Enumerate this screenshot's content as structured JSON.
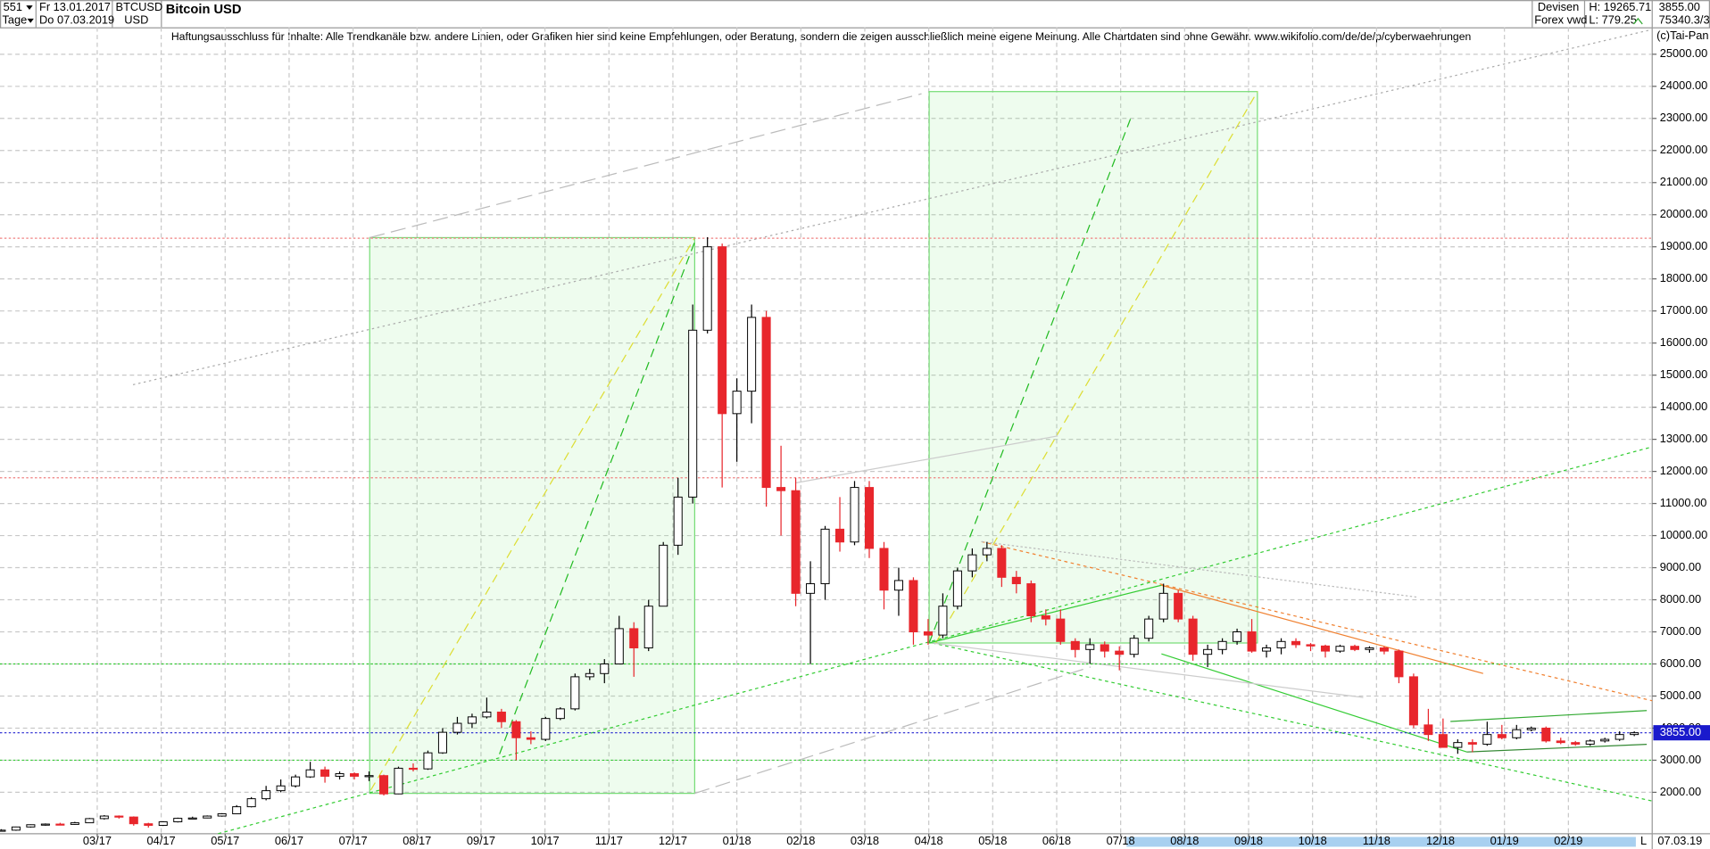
{
  "chart_data": {
    "type": "candlestick",
    "title": "Bitcoin USD",
    "header": {
      "period_count": "551",
      "period_unit": "Tage",
      "start_date": "Fr 13.01.2017",
      "end_date": "Do 07.03.2019",
      "symbol": "BTCUSD",
      "currency": "USD",
      "market": "Devisen",
      "source": "Forex vwd",
      "high_text": "H: 19265.71",
      "low_text": "L: 779.25",
      "volume_text": "75340.3/3",
      "copyright": "(c)Tai-Pan",
      "disclaimer": "Haftungsausschluss für Inhalte: Alle Trendkanäle bzw. andere Linien, oder Grafiken hier sind keine Empfehlungen, oder Beratung, sondern die zeigen ausschließlich meine eigene Meinung. Alle Chartdaten sind ohne Gewähr.  www.wikifolio.com/de/de/p/cyberwaehrungen",
      "end_axis_label": "07.03.19",
      "corner_label": "L"
    },
    "last_price": {
      "value": 3855,
      "label": "3855.00"
    },
    "grid": true,
    "up_color": "#ffffff",
    "down_color": "#e8262c",
    "wick_color": "#000000",
    "levels": [
      {
        "value": 19265.71,
        "color": "#f08080"
      },
      {
        "value": 11800,
        "color": "#f08080"
      },
      {
        "value": 6000,
        "color": "#33cc33"
      },
      {
        "value": 3000,
        "color": "#33cc33"
      }
    ],
    "xlim": [
      0.48,
      26.31
    ],
    "ylim": [
      710,
      25840
    ],
    "xticks": [
      {
        "value": 2,
        "label": "03/17"
      },
      {
        "value": 3,
        "label": "04/17"
      },
      {
        "value": 4,
        "label": "05/17"
      },
      {
        "value": 5,
        "label": "06/17"
      },
      {
        "value": 6,
        "label": "07/17"
      },
      {
        "value": 7,
        "label": "08/17"
      },
      {
        "value": 8,
        "label": "09/17"
      },
      {
        "value": 9,
        "label": "10/17"
      },
      {
        "value": 10,
        "label": "11/17"
      },
      {
        "value": 11,
        "label": "12/17"
      },
      {
        "value": 12,
        "label": "01/18"
      },
      {
        "value": 13,
        "label": "02/18"
      },
      {
        "value": 14,
        "label": "03/18"
      },
      {
        "value": 15,
        "label": "04/18"
      },
      {
        "value": 16,
        "label": "05/18"
      },
      {
        "value": 17,
        "label": "06/18"
      },
      {
        "value": 18,
        "label": "07/18"
      },
      {
        "value": 19,
        "label": "08/18"
      },
      {
        "value": 20,
        "label": "09/18"
      },
      {
        "value": 21,
        "label": "10/18"
      },
      {
        "value": 22,
        "label": "11/18"
      },
      {
        "value": 23,
        "label": "12/18"
      },
      {
        "value": 24,
        "label": "01/19"
      },
      {
        "value": 25,
        "label": "02/19"
      }
    ],
    "yticks": [
      {
        "value": 2000,
        "label": "2000.00"
      },
      {
        "value": 3000,
        "label": "3000.00"
      },
      {
        "value": 4000,
        "label": "4000.00"
      },
      {
        "value": 5000,
        "label": "5000.00"
      },
      {
        "value": 6000,
        "label": "6000.00"
      },
      {
        "value": 7000,
        "label": "7000.00"
      },
      {
        "value": 8000,
        "label": "8000.00"
      },
      {
        "value": 9000,
        "label": "9000.00"
      },
      {
        "value": 10000,
        "label": "10000.00"
      },
      {
        "value": 11000,
        "label": "11000.00"
      },
      {
        "value": 12000,
        "label": "12000.00"
      },
      {
        "value": 13000,
        "label": "13000.00"
      },
      {
        "value": 14000,
        "label": "14000.00"
      },
      {
        "value": 15000,
        "label": "15000.00"
      },
      {
        "value": 16000,
        "label": "16000.00"
      },
      {
        "value": 17000,
        "label": "17000.00"
      },
      {
        "value": 18000,
        "label": "18000.00"
      },
      {
        "value": 19000,
        "label": "19000.00"
      },
      {
        "value": 20000,
        "label": "20000.00"
      },
      {
        "value": 21000,
        "label": "21000.00"
      },
      {
        "value": 22000,
        "label": "22000.00"
      },
      {
        "value": 23000,
        "label": "23000.00"
      },
      {
        "value": 24000,
        "label": "24000.00"
      },
      {
        "value": 25000,
        "label": "25000.00"
      }
    ],
    "x": [
      0.5,
      0.73,
      0.96,
      1.19,
      1.42,
      1.65,
      1.88,
      2.11,
      2.34,
      2.57,
      2.8,
      3.03,
      3.26,
      3.49,
      3.72,
      3.95,
      4.18,
      4.41,
      4.64,
      4.87,
      5.1,
      5.33,
      5.56,
      5.79,
      6.02,
      6.25,
      6.48,
      6.71,
      6.94,
      7.17,
      7.4,
      7.63,
      7.86,
      8.09,
      8.32,
      8.55,
      8.78,
      9.01,
      9.24,
      9.47,
      9.7,
      9.93,
      10.16,
      10.39,
      10.62,
      10.85,
      11.08,
      11.31,
      11.54,
      11.77,
      12.0,
      12.23,
      12.46,
      12.69,
      12.92,
      13.15,
      13.38,
      13.61,
      13.84,
      14.07,
      14.3,
      14.53,
      14.76,
      14.99,
      15.22,
      15.45,
      15.68,
      15.91,
      16.14,
      16.37,
      16.6,
      16.83,
      17.06,
      17.29,
      17.52,
      17.75,
      17.98,
      18.21,
      18.44,
      18.67,
      18.9,
      19.13,
      19.36,
      19.59,
      19.82,
      20.05,
      20.28,
      20.51,
      20.74,
      20.97,
      21.2,
      21.43,
      21.66,
      21.89,
      22.12,
      22.35,
      22.58,
      22.81,
      23.04,
      23.27,
      23.5,
      23.73,
      23.96,
      24.19,
      24.42,
      24.65,
      24.88,
      25.11,
      25.34,
      25.57,
      25.8,
      26.03
    ],
    "open": [
      800,
      820,
      920,
      990,
      1010,
      1000,
      1050,
      1180,
      1260,
      1230,
      1020,
      970,
      1080,
      1190,
      1200,
      1260,
      1330,
      1550,
      1800,
      2050,
      2200,
      2480,
      2700,
      2500,
      2580,
      2500,
      2520,
      1950,
      2750,
      2730,
      3230,
      3870,
      4150,
      4350,
      4500,
      4200,
      3700,
      3650,
      4300,
      4600,
      5600,
      5700,
      6000,
      7100,
      6500,
      7800,
      9700,
      11200,
      16400,
      19000,
      13800,
      14500,
      16800,
      11500,
      11400,
      8200,
      8500,
      10200,
      9800,
      11500,
      9600,
      8300,
      8600,
      7000,
      6900,
      7800,
      8900,
      9400,
      9600,
      8700,
      8500,
      7500,
      7400,
      6700,
      6450,
      6600,
      6400,
      6300,
      6800,
      7400,
      8200,
      7400,
      6300,
      6450,
      6700,
      7000,
      6400,
      6500,
      6700,
      6600,
      6560,
      6400,
      6550,
      6450,
      6500,
      6400,
      5600,
      4100,
      3800,
      3400,
      3550,
      3500,
      3800,
      3700,
      3950,
      4000,
      3600,
      3550,
      3500,
      3600,
      3650,
      3800
    ],
    "high": [
      850,
      930,
      1000,
      1030,
      1050,
      1080,
      1200,
      1290,
      1280,
      1250,
      1050,
      1100,
      1210,
      1240,
      1280,
      1350,
      1600,
      1850,
      2200,
      2400,
      2550,
      2950,
      2800,
      2650,
      2620,
      2650,
      2550,
      2800,
      2900,
      3300,
      4000,
      4350,
      4450,
      4950,
      4600,
      4250,
      3900,
      4350,
      4650,
      5700,
      5850,
      6150,
      7500,
      7300,
      8000,
      9800,
      11800,
      17200,
      19300,
      19100,
      14900,
      17200,
      17000,
      12800,
      11800,
      9200,
      10300,
      11200,
      11700,
      11700,
      9800,
      9000,
      8700,
      7400,
      8200,
      9000,
      9600,
      9800,
      9700,
      8900,
      8600,
      7700,
      7700,
      6800,
      6800,
      6700,
      6550,
      6900,
      7500,
      8500,
      8300,
      7500,
      6600,
      6800,
      7100,
      7400,
      6600,
      6800,
      6800,
      6650,
      6600,
      6600,
      6600,
      6550,
      6550,
      6450,
      5700,
      4600,
      4300,
      3650,
      3650,
      4200,
      4100,
      4100,
      4050,
      4050,
      3700,
      3600,
      3650,
      3700,
      3900,
      3900
    ],
    "low": [
      780,
      800,
      900,
      960,
      970,
      990,
      1040,
      1150,
      1180,
      960,
      900,
      950,
      1060,
      1170,
      1190,
      1240,
      1320,
      1530,
      1750,
      2000,
      2150,
      2450,
      2300,
      2400,
      2400,
      2350,
      1900,
      1940,
      2650,
      2700,
      3200,
      3800,
      4000,
      4300,
      4000,
      3000,
      3500,
      3600,
      4250,
      4550,
      5500,
      5400,
      6000,
      5600,
      6400,
      7800,
      9400,
      11000,
      16300,
      11500,
      12300,
      13500,
      10900,
      10000,
      7800,
      6000,
      8000,
      9500,
      9700,
      9300,
      7700,
      7500,
      6600,
      6600,
      6800,
      7700,
      8700,
      9200,
      8400,
      8200,
      7300,
      7200,
      6600,
      6200,
      6000,
      6200,
      5800,
      6200,
      6700,
      7300,
      7300,
      6100,
      5900,
      6300,
      6600,
      6350,
      6200,
      6300,
      6500,
      6400,
      6200,
      6350,
      6400,
      6350,
      6300,
      5400,
      4000,
      3600,
      3400,
      3200,
      3250,
      3450,
      3650,
      3650,
      3900,
      3550,
      3500,
      3450,
      3450,
      3550,
      3600,
      3750
    ],
    "close": [
      820,
      920,
      990,
      1010,
      1000,
      1050,
      1180,
      1260,
      1230,
      1020,
      970,
      1080,
      1190,
      1200,
      1260,
      1330,
      1550,
      1800,
      2050,
      2200,
      2480,
      2700,
      2500,
      2580,
      2500,
      2520,
      1950,
      2750,
      2730,
      3230,
      3870,
      4150,
      4350,
      4500,
      4200,
      3700,
      3650,
      4300,
      4600,
      5600,
      5700,
      6000,
      7100,
      6500,
      7800,
      9700,
      11200,
      16400,
      19000,
      13800,
      14500,
      16800,
      11500,
      11400,
      8200,
      8500,
      10200,
      9800,
      11500,
      9600,
      8300,
      8600,
      7000,
      6900,
      7800,
      8900,
      9400,
      9600,
      8700,
      8500,
      7500,
      7400,
      6700,
      6450,
      6600,
      6400,
      6300,
      6800,
      7400,
      8200,
      7400,
      6300,
      6450,
      6700,
      7000,
      6400,
      6500,
      6700,
      6600,
      6560,
      6400,
      6550,
      6450,
      6500,
      6400,
      5600,
      4100,
      3800,
      3400,
      3550,
      3500,
      3800,
      3700,
      3950,
      4000,
      3600,
      3550,
      3500,
      3600,
      3650,
      3800,
      3855
    ]
  }
}
